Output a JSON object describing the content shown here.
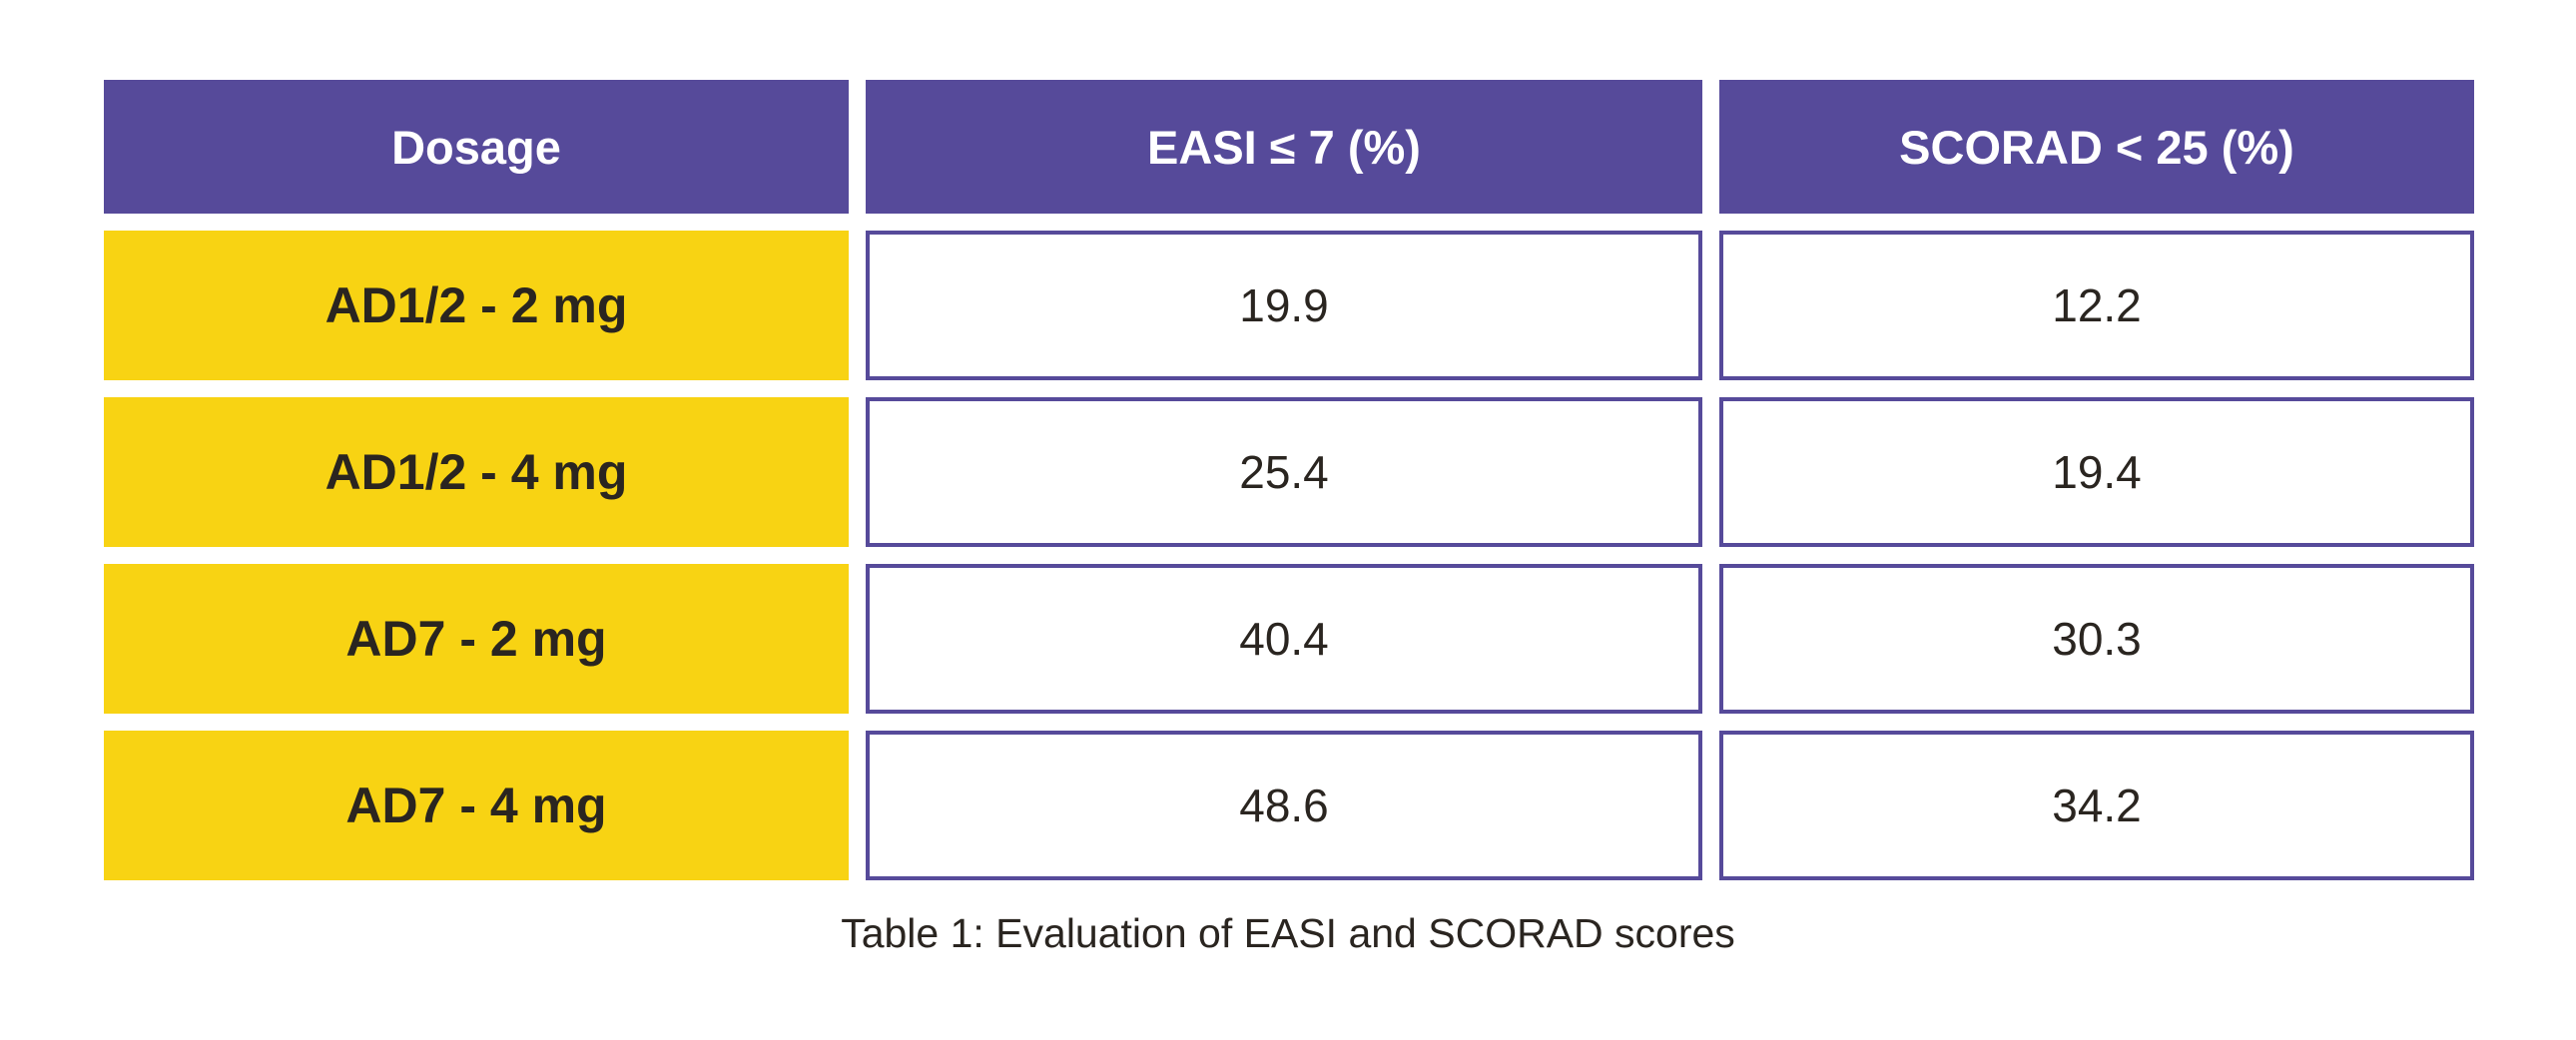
{
  "table": {
    "headers": [
      "Dosage",
      "EASI ≤ 7 (%)",
      "SCORAD < 25 (%)"
    ],
    "rows": [
      {
        "dosage": "AD1/2 - 2 mg",
        "easi": "19.9",
        "scorad": "12.2"
      },
      {
        "dosage": "AD1/2 - 4 mg",
        "easi": "25.4",
        "scorad": "19.4"
      },
      {
        "dosage": "AD7 - 2 mg",
        "easi": "40.4",
        "scorad": "30.3"
      },
      {
        "dosage": "AD7 - 4 mg",
        "easi": "48.6",
        "scorad": "34.2"
      }
    ],
    "caption": "Table 1: Evaluation of EASI and SCORAD scores"
  },
  "colors": {
    "header_bg": "#564a9a",
    "dosage_bg": "#f8d313",
    "value_border": "#564a9a"
  }
}
